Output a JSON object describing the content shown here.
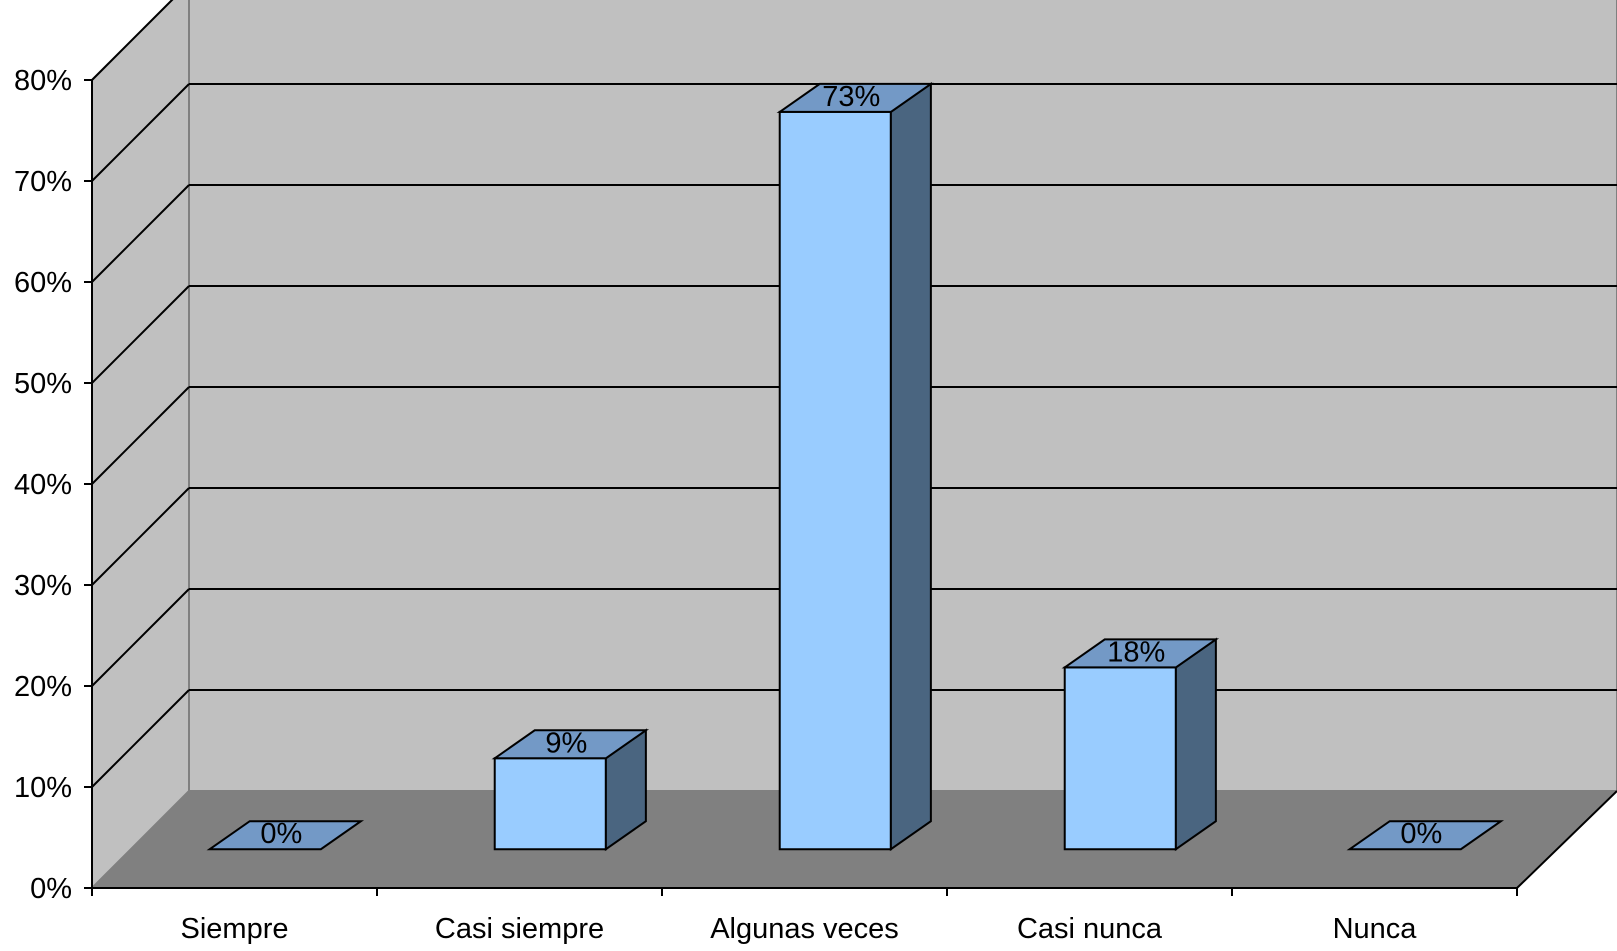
{
  "chart_data": {
    "type": "bar",
    "style": "3d-column",
    "categories": [
      "Siempre",
      "Casi siempre",
      "Algunas veces",
      "Casi nunca",
      "Nunca"
    ],
    "values": [
      0,
      9,
      73,
      18,
      0
    ],
    "value_labels": [
      "0%",
      "9%",
      "73%",
      "18%",
      "0%"
    ],
    "ylim": [
      0,
      80
    ],
    "yticks": [
      "0%",
      "10%",
      "20%",
      "30%",
      "40%",
      "50%",
      "60%",
      "70%",
      "80%"
    ],
    "grid": true,
    "legend": "none",
    "colors": {
      "bar_front": "#99CCFF",
      "bar_top": "#7399C6",
      "bar_side": "#4A6580",
      "back_wall": "#C0C0C0",
      "side_wall": "#C0C0C0",
      "floor": "#808080",
      "grid": "#000000"
    }
  }
}
